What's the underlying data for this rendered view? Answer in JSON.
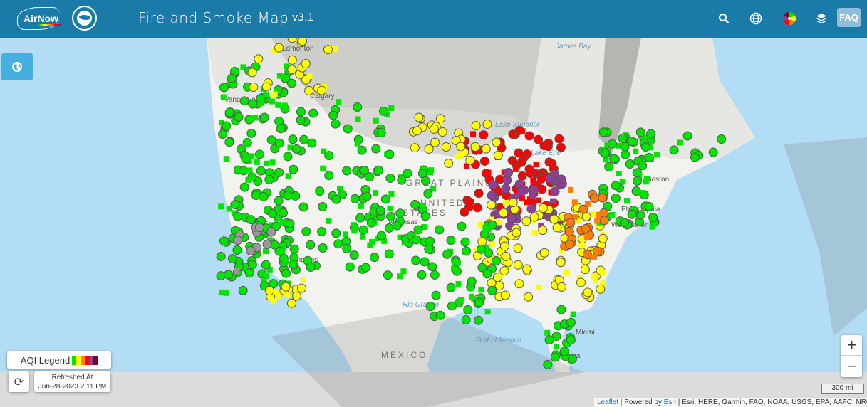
{
  "header": {
    "logo_text": "AirNow",
    "title": "Fire and Smoke Map",
    "version": "v3.1",
    "faq_label": "FAQ",
    "icons": [
      "search-icon",
      "globe-icon",
      "aqi-color-wheel-icon",
      "layers-icon"
    ]
  },
  "map": {
    "colors": {
      "ocean": "#b3dcf5",
      "land": "#f2f2ee",
      "canada": "#e6e6e2",
      "smoke_light": "rgba(120,120,120,0.22)",
      "smoke_dark": "rgba(90,90,90,0.35)",
      "aqi_good": "#00e400",
      "aqi_moderate": "#ffff00",
      "aqi_usg": "#ff7e00",
      "aqi_unhealthy": "#ff0000",
      "aqi_very_unhealthy": "#8f3f97",
      "aqi_hazardous": "#7e0023",
      "no_data": "#999999"
    },
    "labels": [
      "Edmonton",
      "Calgary",
      "Vancouver",
      "James Bay",
      "Lake Superior",
      "GREAT PLAINS",
      "UNITED",
      "STATES",
      "Philadelphia",
      "Washington",
      "Boston",
      "Francisco",
      "Angeles",
      "MEXICO",
      "Gulf of Mexico",
      "Miami",
      "Havana",
      "Rio Grande",
      "Lake Erie",
      "Arkansas"
    ]
  },
  "controls": {
    "aqi_legend_label": "AQI Legend",
    "aqi_legend_colors": [
      "#00e400",
      "#ffff00",
      "#ff7e00",
      "#ff0000",
      "#8f3f97",
      "#7e0023"
    ],
    "refreshed_label": "Refreshed At",
    "refreshed_time": "Jun-28-2023 2:11 PM",
    "zoom_in": "+",
    "zoom_out": "−",
    "scale": "300 mi"
  },
  "attribution": {
    "leaflet": "Leaflet",
    "powered": " | Powered by ",
    "esri": "Esri",
    "rest": " | Esri, HERE, Garmin, FAO, NOAA, USGS, EPA, AAFC, NRCan"
  }
}
